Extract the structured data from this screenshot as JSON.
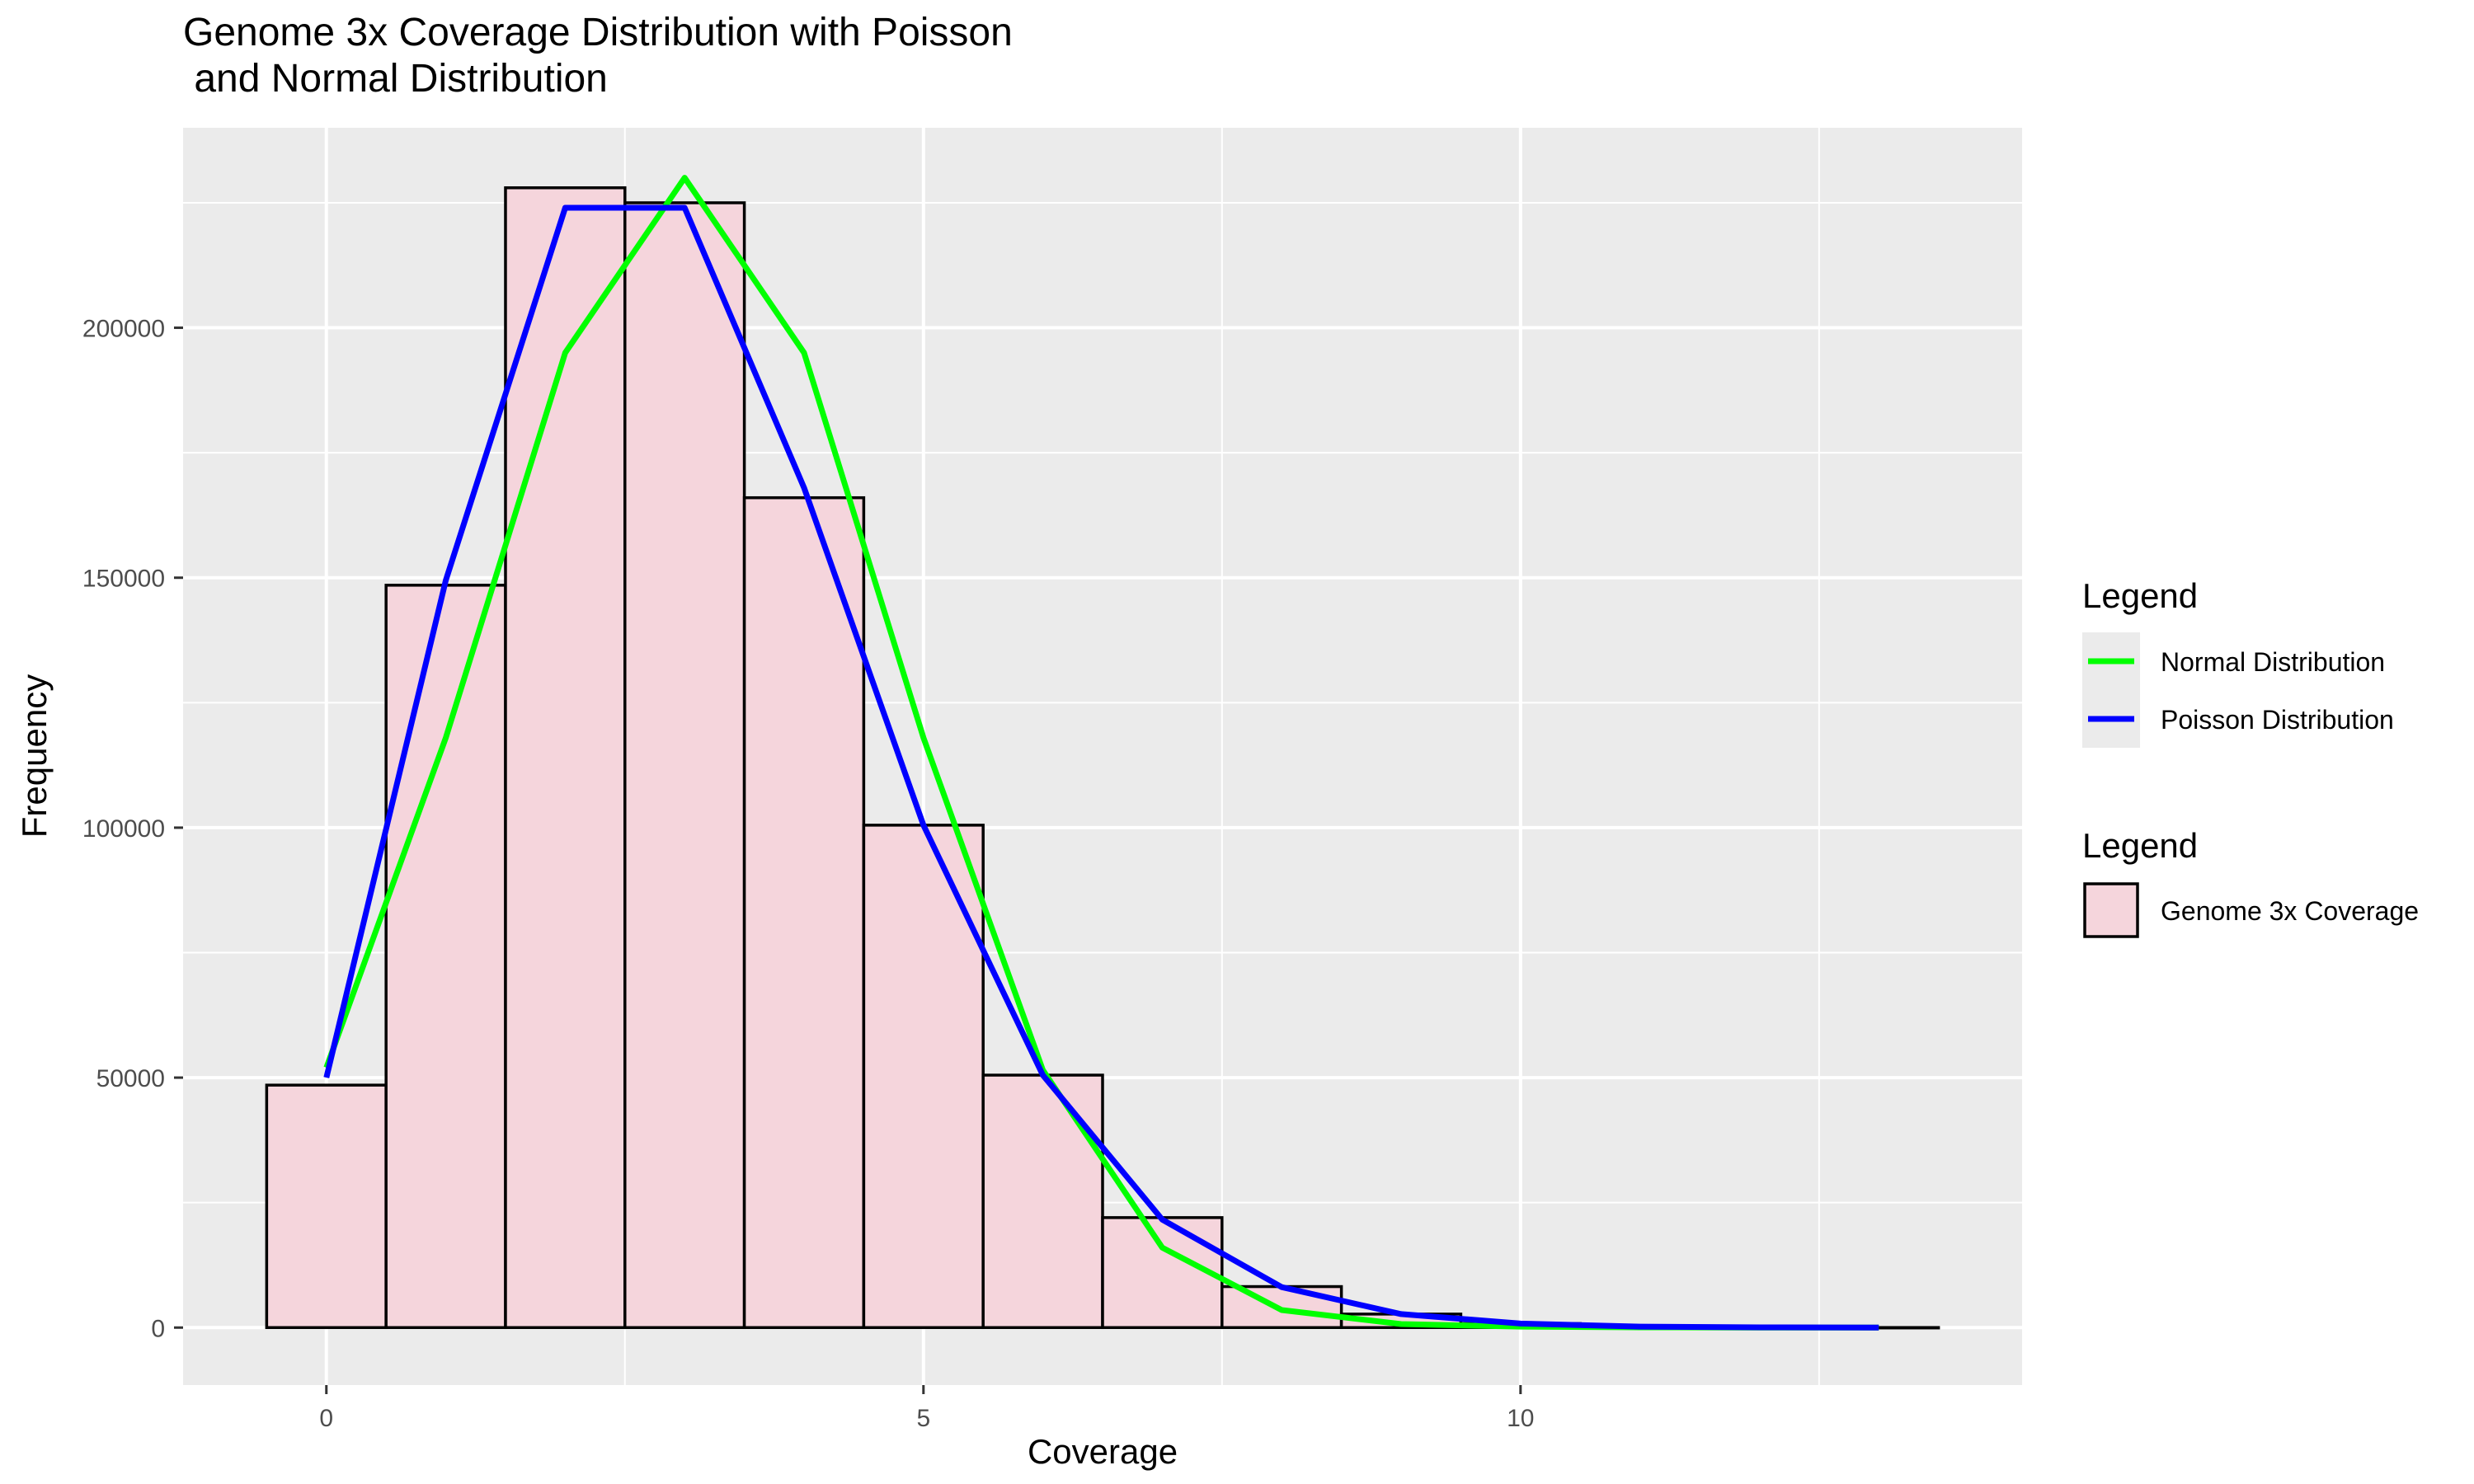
{
  "chart_data": {
    "type": "bar",
    "title": "Genome 3x Coverage Distribution with Poisson\n and Normal Distribution",
    "xlabel": "Coverage",
    "ylabel": "Frequency",
    "xlim": [
      -1.2,
      14.2
    ],
    "ylim": [
      -11500,
      240000
    ],
    "x_ticks": [
      0,
      5,
      10
    ],
    "x_tick_labels": [
      "0",
      "5",
      "10"
    ],
    "y_ticks": [
      0,
      50000,
      100000,
      150000,
      200000
    ],
    "y_tick_labels": [
      "0",
      "50000",
      "100000",
      "150000",
      "200000"
    ],
    "grid": true,
    "legend_position": "right",
    "histogram": {
      "name": "Genome 3x Coverage",
      "bin_width": 1,
      "centers": [
        0,
        1,
        2,
        3,
        4,
        5,
        6,
        7,
        8,
        9,
        10,
        11,
        12,
        13
      ],
      "values": [
        48500,
        148500,
        228000,
        225000,
        166000,
        100500,
        50500,
        22000,
        8200,
        2700,
        800,
        200,
        50,
        10
      ],
      "fill": "#f5d5dc",
      "stroke": "#000000"
    },
    "series": [
      {
        "name": "Normal Distribution",
        "color": "#00ff00",
        "x": [
          0,
          1,
          2,
          3,
          4,
          5,
          6,
          7,
          8,
          9,
          10,
          11,
          12,
          13
        ],
        "values": [
          52000,
          118000,
          195000,
          230000,
          195000,
          118000,
          51500,
          16000,
          3500,
          700,
          200,
          50,
          10,
          0
        ]
      },
      {
        "name": "Poisson Distribution",
        "color": "#0000ff",
        "x": [
          0,
          1,
          2,
          3,
          4,
          5,
          6,
          7,
          8,
          9,
          10,
          11,
          12,
          13
        ],
        "values": [
          50000,
          149500,
          224000,
          224000,
          168000,
          100500,
          50500,
          21600,
          8100,
          2700,
          800,
          200,
          50,
          10
        ]
      }
    ],
    "legends": [
      {
        "title": "Legend",
        "entries": [
          "Normal Distribution",
          "Poisson Distribution"
        ]
      },
      {
        "title": "Legend",
        "entries": [
          "Genome 3x Coverage"
        ]
      }
    ]
  }
}
